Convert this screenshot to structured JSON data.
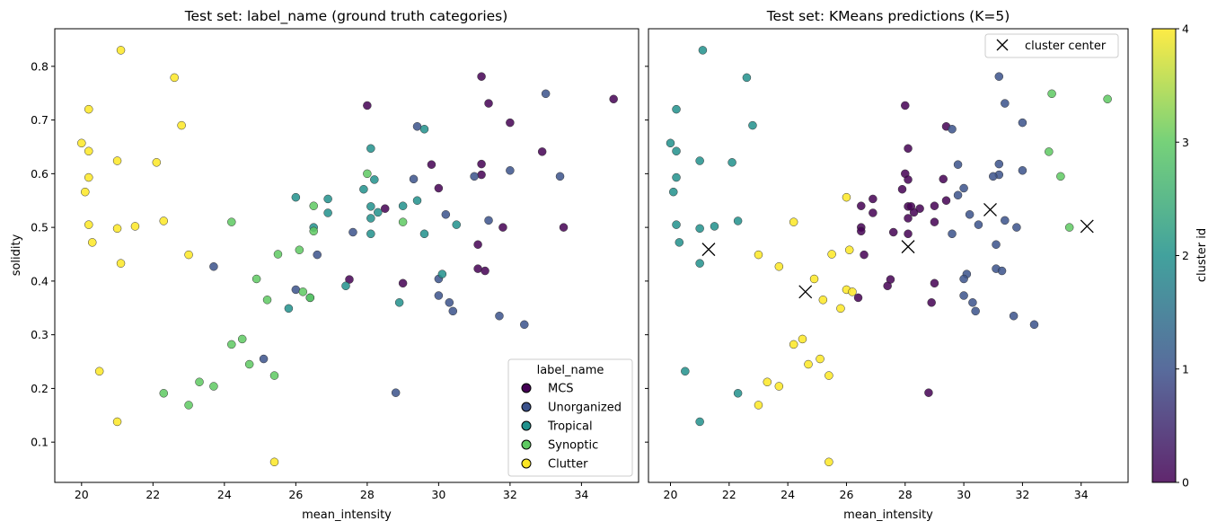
{
  "chart_data": [
    {
      "type": "scatter",
      "title": "Test set: label_name (ground truth categories)",
      "xlabel": "mean_intensity",
      "ylabel": "solidity",
      "xlim": [
        19.25,
        35.6
      ],
      "ylim": [
        0.025,
        0.87
      ],
      "xticks": [
        20,
        22,
        24,
        26,
        28,
        30,
        32,
        34
      ],
      "yticks": [
        0.1,
        0.2,
        0.3,
        0.4,
        0.5,
        0.6,
        0.7,
        0.8
      ],
      "legend": {
        "title": "label_name",
        "position": "lower-right",
        "entries": [
          {
            "name": "MCS",
            "color": "#440154"
          },
          {
            "name": "Unorganized",
            "color": "#3b528b"
          },
          {
            "name": "Tropical",
            "color": "#21918c"
          },
          {
            "name": "Synoptic",
            "color": "#5ec962"
          },
          {
            "name": "Clutter",
            "color": "#fde725"
          }
        ]
      },
      "series": [
        {
          "name": "MCS",
          "points": [
            [
              28.0,
              0.727
            ],
            [
              31.2,
              0.781
            ],
            [
              31.4,
              0.731
            ],
            [
              32.0,
              0.695
            ],
            [
              34.9,
              0.739
            ],
            [
              32.9,
              0.641
            ],
            [
              29.8,
              0.617
            ],
            [
              31.2,
              0.618
            ],
            [
              31.2,
              0.598
            ],
            [
              30.0,
              0.573
            ],
            [
              28.5,
              0.535
            ],
            [
              31.8,
              0.5
            ],
            [
              33.5,
              0.5
            ],
            [
              31.1,
              0.468
            ],
            [
              31.1,
              0.423
            ],
            [
              31.3,
              0.419
            ],
            [
              27.5,
              0.403
            ],
            [
              29.0,
              0.396
            ]
          ]
        },
        {
          "name": "Unorganized",
          "points": [
            [
              33.0,
              0.749
            ],
            [
              29.4,
              0.688
            ],
            [
              32.0,
              0.606
            ],
            [
              33.4,
              0.595
            ],
            [
              31.0,
              0.595
            ],
            [
              29.3,
              0.59
            ],
            [
              30.2,
              0.524
            ],
            [
              31.4,
              0.513
            ],
            [
              27.6,
              0.491
            ],
            [
              26.6,
              0.449
            ],
            [
              23.7,
              0.427
            ],
            [
              26.0,
              0.384
            ],
            [
              30.0,
              0.404
            ],
            [
              30.0,
              0.373
            ],
            [
              30.3,
              0.36
            ],
            [
              30.4,
              0.344
            ],
            [
              31.7,
              0.335
            ],
            [
              32.4,
              0.319
            ],
            [
              25.1,
              0.255
            ],
            [
              28.8,
              0.192
            ]
          ]
        },
        {
          "name": "Tropical",
          "points": [
            [
              29.6,
              0.683
            ],
            [
              28.1,
              0.647
            ],
            [
              28.2,
              0.589
            ],
            [
              28.1,
              0.539
            ],
            [
              27.9,
              0.571
            ],
            [
              26.0,
              0.556
            ],
            [
              26.9,
              0.553
            ],
            [
              29.4,
              0.55
            ],
            [
              29.0,
              0.54
            ],
            [
              28.3,
              0.528
            ],
            [
              26.9,
              0.527
            ],
            [
              28.1,
              0.517
            ],
            [
              30.5,
              0.505
            ],
            [
              26.5,
              0.5
            ],
            [
              29.6,
              0.488
            ],
            [
              28.1,
              0.488
            ],
            [
              30.1,
              0.413
            ],
            [
              27.4,
              0.391
            ],
            [
              26.4,
              0.369
            ],
            [
              25.8,
              0.349
            ],
            [
              28.9,
              0.36
            ]
          ]
        },
        {
          "name": "Synoptic",
          "points": [
            [
              28.0,
              0.6
            ],
            [
              26.5,
              0.54
            ],
            [
              24.2,
              0.51
            ],
            [
              29.0,
              0.51
            ],
            [
              26.5,
              0.493
            ],
            [
              26.1,
              0.458
            ],
            [
              25.5,
              0.45
            ],
            [
              24.9,
              0.404
            ],
            [
              26.2,
              0.38
            ],
            [
              26.4,
              0.369
            ],
            [
              25.2,
              0.365
            ],
            [
              24.2,
              0.282
            ],
            [
              24.5,
              0.292
            ],
            [
              24.7,
              0.245
            ],
            [
              25.4,
              0.224
            ],
            [
              23.3,
              0.212
            ],
            [
              23.7,
              0.204
            ],
            [
              22.3,
              0.191
            ],
            [
              23.0,
              0.169
            ]
          ]
        },
        {
          "name": "Clutter",
          "points": [
            [
              21.1,
              0.83
            ],
            [
              22.6,
              0.779
            ],
            [
              20.2,
              0.72
            ],
            [
              22.8,
              0.69
            ],
            [
              20.0,
              0.657
            ],
            [
              20.2,
              0.642
            ],
            [
              21.0,
              0.624
            ],
            [
              22.1,
              0.621
            ],
            [
              20.2,
              0.593
            ],
            [
              20.1,
              0.566
            ],
            [
              20.2,
              0.505
            ],
            [
              21.5,
              0.502
            ],
            [
              22.3,
              0.512
            ],
            [
              21.0,
              0.498
            ],
            [
              20.3,
              0.472
            ],
            [
              23.0,
              0.449
            ],
            [
              21.1,
              0.433
            ],
            [
              20.5,
              0.232
            ],
            [
              21.0,
              0.138
            ],
            [
              25.4,
              0.063
            ]
          ]
        }
      ]
    },
    {
      "type": "scatter",
      "title": "Test set: KMeans predictions (K=5)",
      "xlabel": "mean_intensity",
      "ylabel": "",
      "xlim": [
        19.25,
        35.6
      ],
      "ylim": [
        0.025,
        0.87
      ],
      "xticks": [
        20,
        22,
        24,
        26,
        28,
        30,
        32,
        34
      ],
      "yticks": [
        0.1,
        0.2,
        0.3,
        0.4,
        0.5,
        0.6,
        0.7,
        0.8
      ],
      "legend": {
        "position": "upper-right",
        "entries": [
          {
            "name": "cluster center",
            "marker": "x"
          }
        ]
      },
      "colorbar": {
        "label": "cluster id",
        "ticks": [
          "0",
          "1",
          "2",
          "3",
          "4"
        ],
        "range": [
          0,
          4
        ],
        "colors": [
          "#440154",
          "#3b528b",
          "#21918c",
          "#5ec962",
          "#fde725"
        ]
      },
      "cluster_centers": [
        [
          21.3,
          0.459
        ],
        [
          24.6,
          0.38
        ],
        [
          28.1,
          0.464
        ],
        [
          30.9,
          0.533
        ],
        [
          34.2,
          0.502
        ]
      ],
      "series": [
        {
          "name": "0",
          "points": [
            [
              28.0,
              0.727
            ],
            [
              29.4,
              0.688
            ],
            [
              28.1,
              0.647
            ],
            [
              28.0,
              0.6
            ],
            [
              28.1,
              0.589
            ],
            [
              29.3,
              0.59
            ],
            [
              26.9,
              0.553
            ],
            [
              29.4,
              0.55
            ],
            [
              27.9,
              0.571
            ],
            [
              28.1,
              0.539
            ],
            [
              28.2,
              0.539
            ],
            [
              29.0,
              0.54
            ],
            [
              28.5,
              0.535
            ],
            [
              26.5,
              0.54
            ],
            [
              28.3,
              0.528
            ],
            [
              26.9,
              0.527
            ],
            [
              28.1,
              0.517
            ],
            [
              29.0,
              0.51
            ],
            [
              26.5,
              0.5
            ],
            [
              26.5,
              0.493
            ],
            [
              27.6,
              0.491
            ],
            [
              28.1,
              0.488
            ],
            [
              26.6,
              0.449
            ],
            [
              27.5,
              0.403
            ],
            [
              27.4,
              0.391
            ],
            [
              29.0,
              0.396
            ],
            [
              26.4,
              0.369
            ],
            [
              28.9,
              0.36
            ],
            [
              28.8,
              0.192
            ]
          ]
        },
        {
          "name": "1",
          "points": [
            [
              31.2,
              0.781
            ],
            [
              31.4,
              0.731
            ],
            [
              32.0,
              0.695
            ],
            [
              29.6,
              0.683
            ],
            [
              29.8,
              0.617
            ],
            [
              31.2,
              0.618
            ],
            [
              32.0,
              0.606
            ],
            [
              31.2,
              0.598
            ],
            [
              31.0,
              0.595
            ],
            [
              30.0,
              0.573
            ],
            [
              29.8,
              0.56
            ],
            [
              30.2,
              0.524
            ],
            [
              30.5,
              0.505
            ],
            [
              31.4,
              0.513
            ],
            [
              31.8,
              0.5
            ],
            [
              29.6,
              0.488
            ],
            [
              31.1,
              0.468
            ],
            [
              31.1,
              0.423
            ],
            [
              31.3,
              0.419
            ],
            [
              30.1,
              0.413
            ],
            [
              30.0,
              0.404
            ],
            [
              30.0,
              0.373
            ],
            [
              30.3,
              0.36
            ],
            [
              30.4,
              0.344
            ],
            [
              31.7,
              0.335
            ],
            [
              32.4,
              0.319
            ]
          ]
        },
        {
          "name": "2",
          "points": [
            [
              21.1,
              0.83
            ],
            [
              22.6,
              0.779
            ],
            [
              20.2,
              0.72
            ],
            [
              22.8,
              0.69
            ],
            [
              20.0,
              0.657
            ],
            [
              20.2,
              0.642
            ],
            [
              21.0,
              0.624
            ],
            [
              22.1,
              0.621
            ],
            [
              20.2,
              0.593
            ],
            [
              20.1,
              0.566
            ],
            [
              22.3,
              0.512
            ],
            [
              20.2,
              0.505
            ],
            [
              21.5,
              0.502
            ],
            [
              21.0,
              0.498
            ],
            [
              20.3,
              0.472
            ],
            [
              21.0,
              0.433
            ],
            [
              20.5,
              0.232
            ],
            [
              22.3,
              0.191
            ],
            [
              21.0,
              0.138
            ]
          ]
        },
        {
          "name": "3",
          "points": [
            [
              33.0,
              0.749
            ],
            [
              32.9,
              0.641
            ],
            [
              33.3,
              0.595
            ],
            [
              33.6,
              0.5
            ],
            [
              34.9,
              0.739
            ]
          ]
        },
        {
          "name": "4",
          "points": [
            [
              26.0,
              0.556
            ],
            [
              24.2,
              0.51
            ],
            [
              26.1,
              0.458
            ],
            [
              25.5,
              0.45
            ],
            [
              23.0,
              0.449
            ],
            [
              23.7,
              0.427
            ],
            [
              24.9,
              0.404
            ],
            [
              26.0,
              0.384
            ],
            [
              26.2,
              0.38
            ],
            [
              25.2,
              0.365
            ],
            [
              25.8,
              0.349
            ],
            [
              24.2,
              0.282
            ],
            [
              24.5,
              0.292
            ],
            [
              25.1,
              0.255
            ],
            [
              24.7,
              0.245
            ],
            [
              25.4,
              0.224
            ],
            [
              23.3,
              0.212
            ],
            [
              23.7,
              0.204
            ],
            [
              23.0,
              0.169
            ],
            [
              25.4,
              0.063
            ]
          ]
        }
      ]
    }
  ]
}
